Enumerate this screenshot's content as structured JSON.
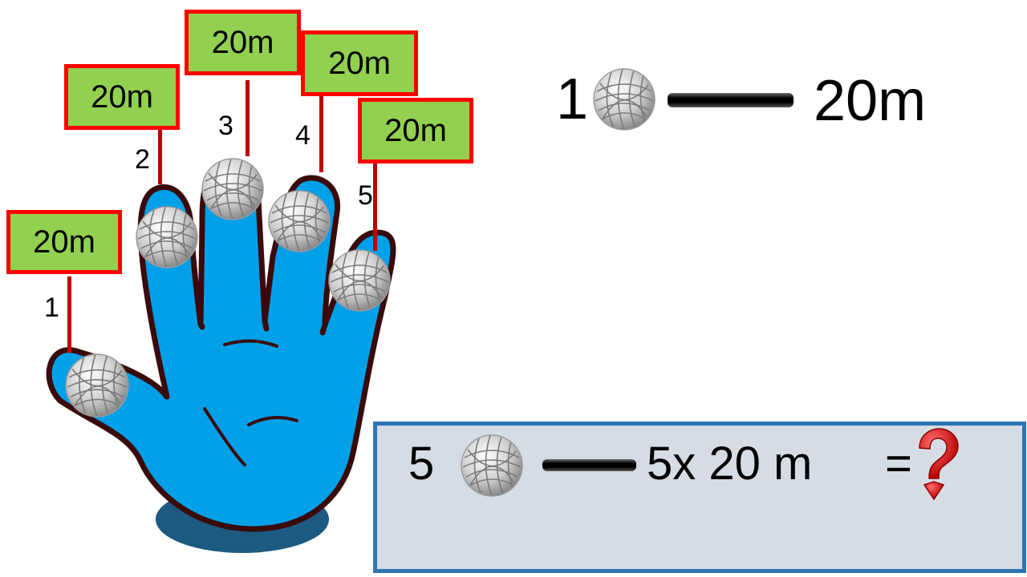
{
  "hand": {
    "color": "#00a0e9",
    "outline": "#3a0a0a",
    "fingers": [
      {
        "number": "1",
        "label": "20m"
      },
      {
        "number": "2",
        "label": "20m"
      },
      {
        "number": "3",
        "label": "20m"
      },
      {
        "number": "4",
        "label": "20m"
      },
      {
        "number": "5",
        "label": "20m"
      }
    ],
    "sign_fill": "#92d050",
    "sign_border": "#ff0000"
  },
  "top_equation": {
    "count": "1",
    "icon": "string-ball-icon",
    "value": "20m"
  },
  "bottom_equation": {
    "count": "5",
    "icon": "string-ball-icon",
    "expression": "5x 20 m",
    "equals": "=",
    "unknown_icon": "question-mark-icon",
    "box_fill": "#d6dce4",
    "box_border": "#2e75b6"
  }
}
